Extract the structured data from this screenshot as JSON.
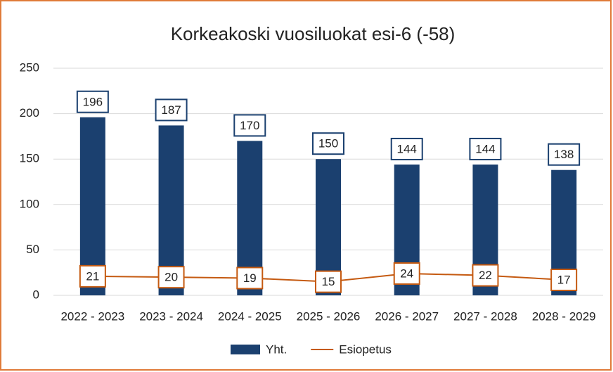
{
  "chart_data": {
    "type": "bar",
    "title": "Korkeakoski  vuosiluokat esi-6 (-58)",
    "categories": [
      "2022 - 2023",
      "2023 - 2024",
      "2024 - 2025",
      "2025 - 2026",
      "2026 - 2027",
      "2027 - 2028",
      "2028 - 2029"
    ],
    "series": [
      {
        "name": "Yht.",
        "type": "bar",
        "color": "#1b406f",
        "values": [
          196,
          187,
          170,
          150,
          144,
          144,
          138
        ]
      },
      {
        "name": "Esiopetus",
        "type": "line",
        "color": "#c55a11",
        "values": [
          21,
          20,
          19,
          15,
          24,
          22,
          17
        ]
      }
    ],
    "ylim": [
      0,
      250
    ],
    "yticks": [
      0,
      50,
      100,
      150,
      200,
      250
    ],
    "grid": true,
    "legend": "bottom"
  }
}
